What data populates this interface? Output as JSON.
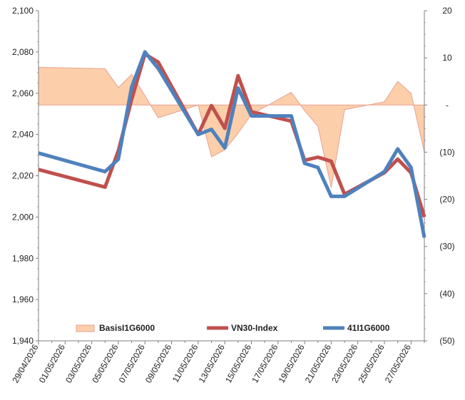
{
  "chart_data": {
    "type": "line",
    "x": [
      "29/04/2026",
      "04/05/2026",
      "05/05/2026",
      "06/05/2026",
      "07/05/2026",
      "08/05/2026",
      "11/05/2026",
      "12/05/2026",
      "13/05/2026",
      "14/05/2026",
      "15/05/2026",
      "18/05/2026",
      "19/05/2026",
      "20/05/2026",
      "21/05/2026",
      "22/05/2026",
      "25/05/2026",
      "26/05/2026",
      "27/05/2026",
      "28/05/2026"
    ],
    "x_tick_labels": [
      "29/04/2026",
      "01/05/2026",
      "03/05/2026",
      "05/05/2026",
      "07/05/2026",
      "09/05/2026",
      "11/05/2026",
      "13/05/2026",
      "15/05/2026",
      "17/05/2026",
      "19/05/2026",
      "21/05/2026",
      "23/05/2026",
      "25/05/2026",
      "27/05/2026"
    ],
    "xlim": [
      "29/04/2026",
      "28/05/2026"
    ],
    "y_left": {
      "ylim": [
        1940,
        2100
      ],
      "ticks": [
        "1,940",
        "1,960",
        "1,980",
        "2,000",
        "2,020",
        "2,040",
        "2,060",
        "2,080",
        "2,100"
      ]
    },
    "y_right": {
      "ylim": [
        -50,
        20
      ],
      "ticks": [
        "(50)",
        "(40)",
        "(30)",
        "(20)",
        "(10)",
        "-",
        "10",
        "20"
      ]
    },
    "series": [
      {
        "name": "BasisI1G6000",
        "type": "area",
        "axis": "right",
        "color": "#fccfaa",
        "line_color": "#e8a090",
        "values": [
          8.0,
          7.7,
          3.7,
          6.5,
          2.0,
          -2.7,
          0.0,
          -11.0,
          -9.5,
          -6.0,
          -2.0,
          2.7,
          -1.2,
          -4.5,
          -17.5,
          -1.0,
          0.7,
          5.0,
          2.5,
          -10.0
        ]
      },
      {
        "name": "VN30-Index",
        "type": "line",
        "axis": "left",
        "color": "#c0504d",
        "values": [
          2023,
          2014.5,
          2032,
          2057,
          2079,
          2075,
          2040,
          2054,
          2043,
          2068.5,
          2051,
          2046.5,
          2027.5,
          2029,
          2027,
          2011,
          2021.5,
          2028,
          2021.5,
          2000
        ]
      },
      {
        "name": "41I1G6000",
        "type": "line",
        "axis": "left",
        "color": "#4f81bd",
        "values": [
          2031,
          2022,
          2028,
          2063,
          2080,
          2072,
          2040,
          2042.5,
          2033.5,
          2062.5,
          2049,
          2049,
          2026,
          2024,
          2010,
          2010,
          2022,
          2033,
          2024,
          1990
        ]
      }
    ],
    "grid": false,
    "legend_position": "bottom",
    "title": "",
    "xlabel": "",
    "ylabel": ""
  }
}
